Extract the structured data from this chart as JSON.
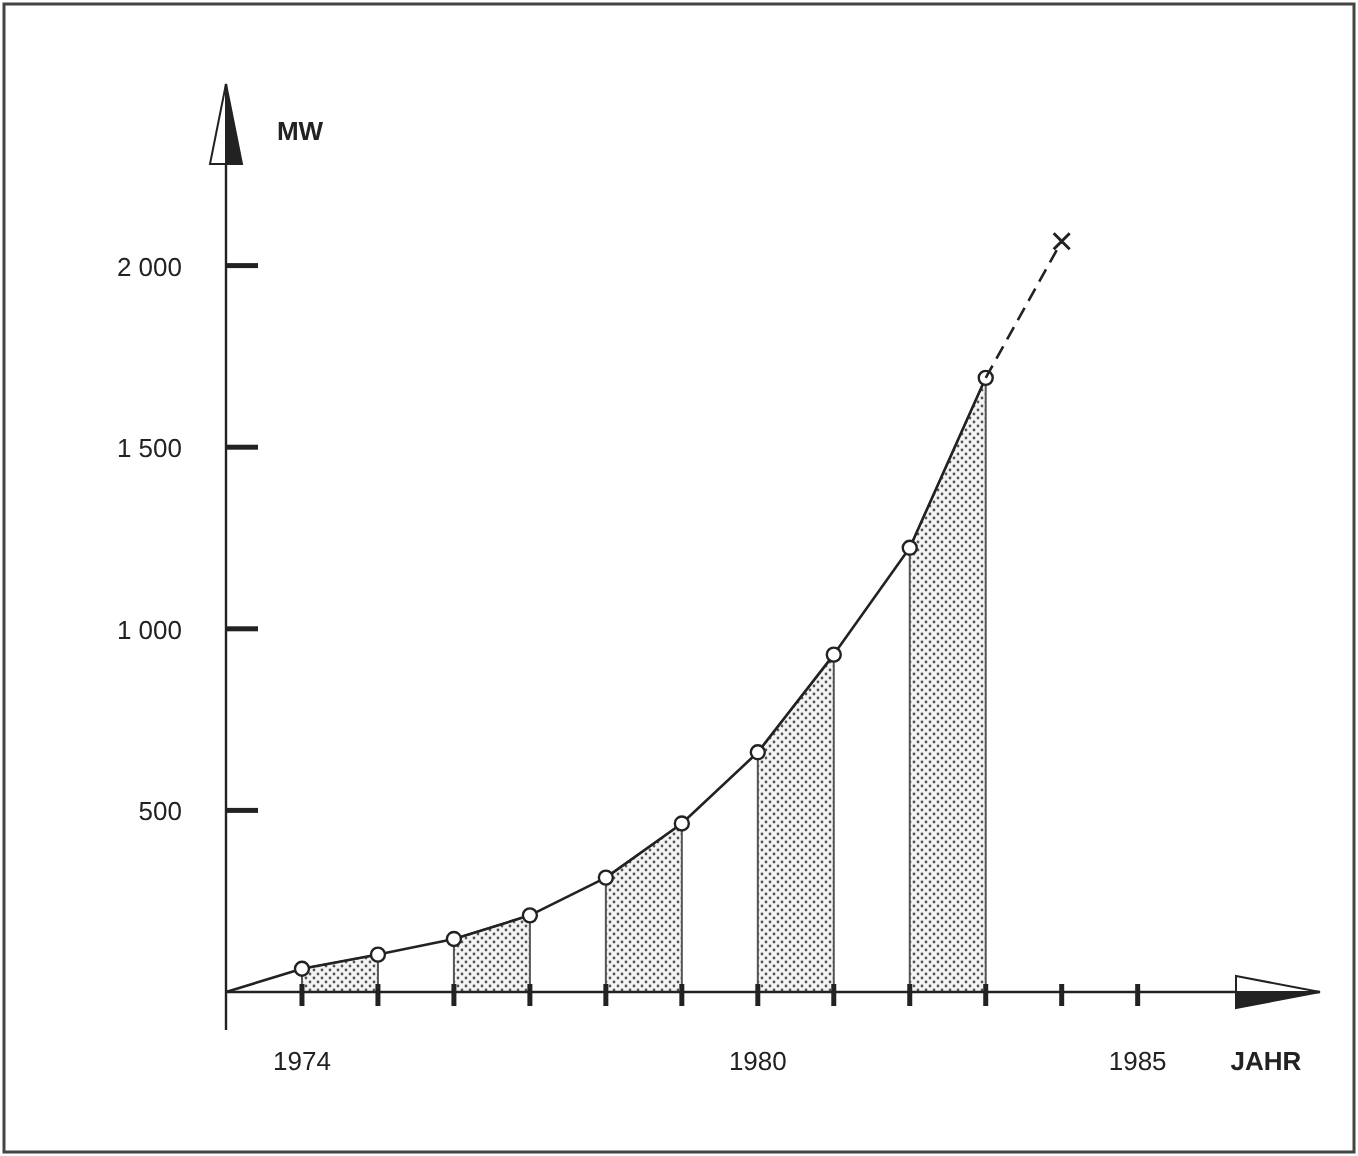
{
  "chart_data": {
    "type": "line",
    "xlabel": "JAHR",
    "ylabel": "MW",
    "xlim": [
      1973,
      1987.4
    ],
    "ylim": [
      0,
      2500
    ],
    "xticks": [
      {
        "value": 1973,
        "label": null
      },
      {
        "value": 1974,
        "label": "1974"
      },
      {
        "value": 1975,
        "label": null
      },
      {
        "value": 1976,
        "label": null
      },
      {
        "value": 1977,
        "label": null
      },
      {
        "value": 1978,
        "label": null
      },
      {
        "value": 1979,
        "label": null
      },
      {
        "value": 1980,
        "label": "1980"
      },
      {
        "value": 1981,
        "label": null
      },
      {
        "value": 1982,
        "label": null
      },
      {
        "value": 1983,
        "label": null
      },
      {
        "value": 1984,
        "label": null
      },
      {
        "value": 1985,
        "label": "1985"
      }
    ],
    "yticks": [
      {
        "value": 500,
        "label": "500"
      },
      {
        "value": 1000,
        "label": "1 000"
      },
      {
        "value": 1500,
        "label": "1 500"
      },
      {
        "value": 2000,
        "label": "2 000"
      }
    ],
    "grid": false,
    "series": [
      {
        "type": "area",
        "color": "#555555",
        "x": [
          1974,
          1975
        ],
        "values": [
          64,
          103
        ]
      },
      {
        "type": "area",
        "color": "#555555",
        "x": [
          1976,
          1977
        ],
        "values": [
          146,
          211
        ]
      },
      {
        "type": "area",
        "color": "#555555",
        "x": [
          1978,
          1979
        ],
        "values": [
          315,
          464
        ]
      },
      {
        "type": "area",
        "color": "#555555",
        "x": [
          1980,
          1981
        ],
        "values": [
          660,
          929
        ]
      },
      {
        "type": "area",
        "color": "#555555",
        "x": [
          1982,
          1983
        ],
        "values": [
          1223,
          1691
        ]
      },
      {
        "color": "#222222",
        "marker": "none",
        "line_style": "solid",
        "x": [
          1973,
          1974,
          1975,
          1976,
          1977,
          1978,
          1979,
          1980,
          1981,
          1982,
          1983
        ],
        "values": [
          0,
          64,
          103,
          146,
          211,
          315,
          464,
          660,
          929,
          1223,
          1691
        ]
      },
      {
        "type": "scatter",
        "color": "#222222",
        "marker": "circle",
        "x": [
          1974,
          1975,
          1976,
          1977,
          1978,
          1979,
          1980,
          1981,
          1982,
          1983
        ],
        "values": [
          64,
          103,
          146,
          211,
          315,
          464,
          660,
          929,
          1223,
          1691
        ]
      },
      {
        "color": "#222222",
        "marker": "none",
        "line_style": "dashed",
        "x": [
          1983,
          1984
        ],
        "values": [
          1691,
          2067
        ]
      },
      {
        "type": "scatter",
        "color": "#222222",
        "marker": "cross",
        "x": [
          1984
        ],
        "values": [
          2067
        ]
      }
    ]
  }
}
